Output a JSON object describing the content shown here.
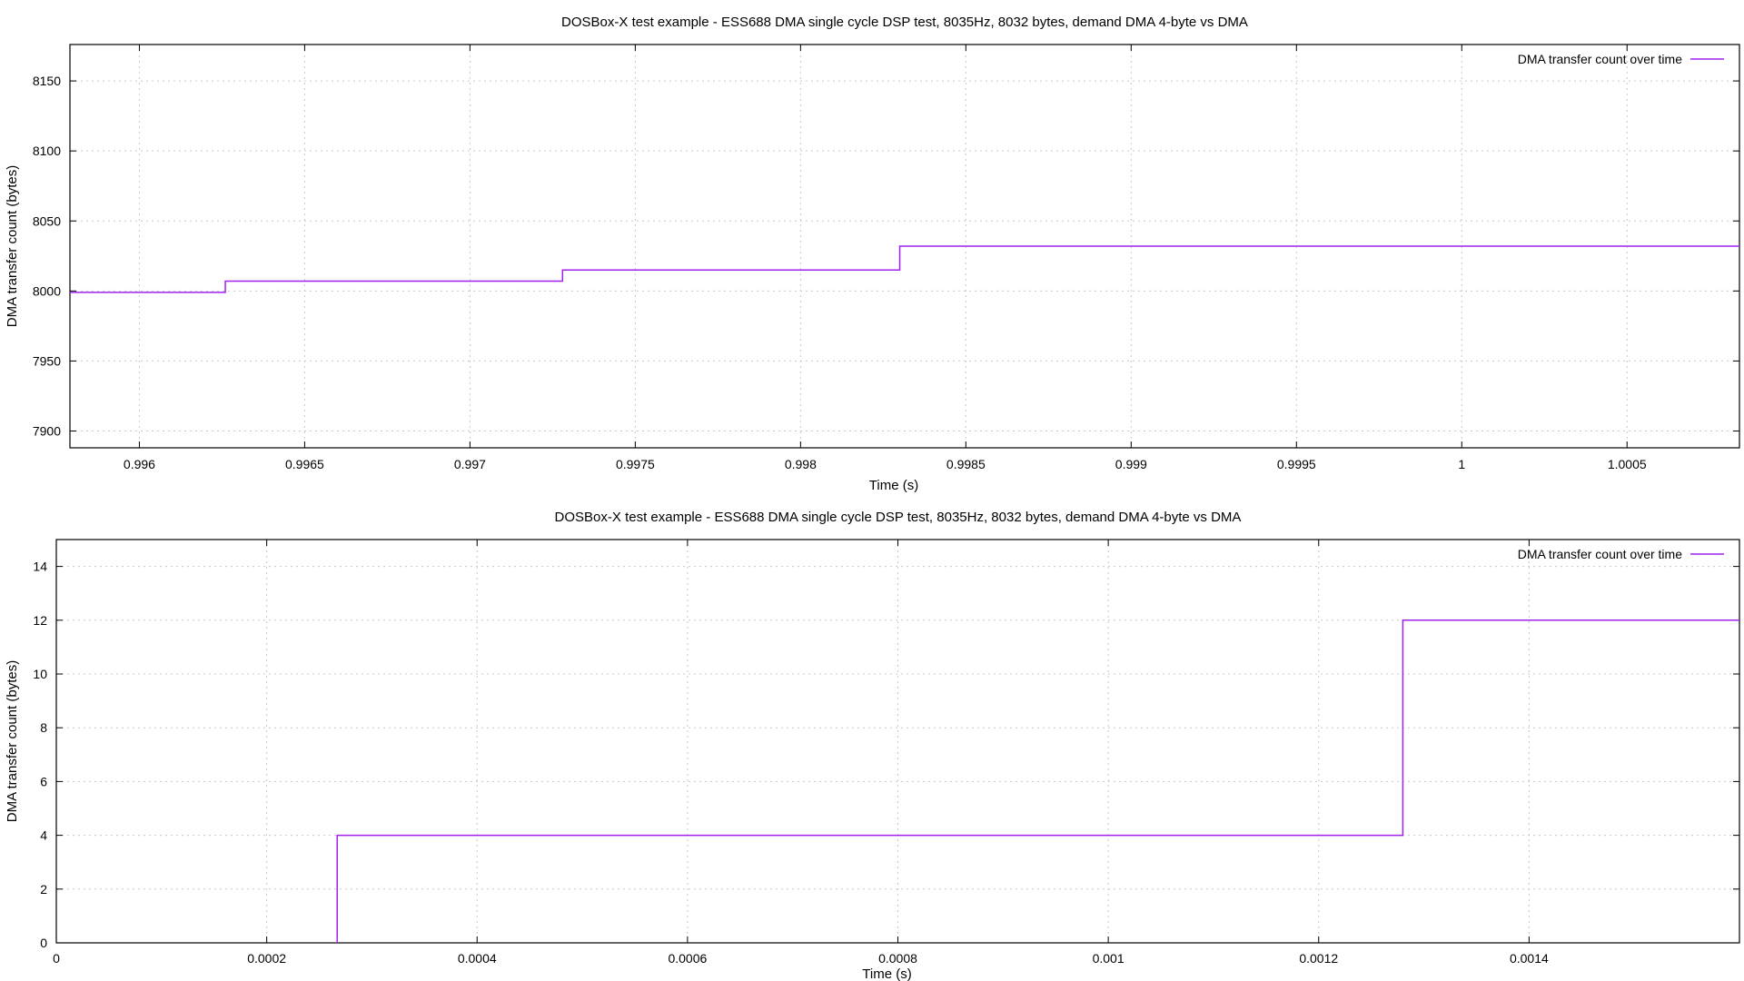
{
  "chart_data": [
    {
      "type": "line",
      "title": "DOSBox-X test example - ESS688 DMA single cycle DSP test, 8035Hz, 8032 bytes, demand DMA 4-byte vs DMA",
      "xlabel": "Time (s)",
      "ylabel": "DMA transfer count (bytes)",
      "xlim": [
        0.99579,
        1.00084
      ],
      "ylim": [
        7888,
        8176
      ],
      "xticks": [
        0.996,
        0.9965,
        0.997,
        0.9975,
        0.998,
        0.9985,
        0.999,
        0.9995,
        1,
        1.0005
      ],
      "xtick_labels": [
        "0.996",
        "0.9965",
        "0.997",
        "0.9975",
        "0.998",
        "0.9985",
        "0.999",
        "0.9995",
        "1",
        "1.0005"
      ],
      "yticks": [
        7900,
        7950,
        8000,
        8050,
        8100,
        8150
      ],
      "ytick_labels": [
        "7900",
        "7950",
        "8000",
        "8050",
        "8100",
        "8150"
      ],
      "grid": true,
      "legend_position": "top-right",
      "series": [
        {
          "name": "DMA transfer count over time",
          "color": "#a020f0",
          "step": true,
          "x": [
            0.99579,
            0.99626,
            0.99728,
            0.9983,
            1.00084
          ],
          "y": [
            7999,
            8007,
            8015,
            8032,
            8032
          ]
        }
      ]
    },
    {
      "type": "line",
      "title": "DOSBox-X test example - ESS688 DMA single cycle DSP test, 8035Hz, 8032 bytes, demand DMA 4-byte vs DMA",
      "xlabel": "Time (s)",
      "ylabel": "DMA transfer count (bytes)",
      "xlim": [
        0,
        0.0016
      ],
      "ylim": [
        0,
        15
      ],
      "xticks": [
        0,
        0.0002,
        0.0004,
        0.0006,
        0.0008,
        0.001,
        0.0012,
        0.0014
      ],
      "xtick_labels": [
        "0",
        "0.0002",
        "0.0004",
        "0.0006",
        "0.0008",
        "0.001",
        "0.0012",
        "0.0014"
      ],
      "yticks": [
        0,
        2,
        4,
        6,
        8,
        10,
        12,
        14
      ],
      "ytick_labels": [
        "0",
        "2",
        "4",
        "6",
        "8",
        "10",
        "12",
        "14"
      ],
      "grid": true,
      "legend_position": "top-right",
      "series": [
        {
          "name": "DMA transfer count over time",
          "color": "#a020f0",
          "step": true,
          "x": [
            0.000267,
            0.000267,
            0.00128,
            0.00128,
            0.0016
          ],
          "y": [
            0,
            4,
            4,
            12,
            12
          ]
        }
      ]
    }
  ]
}
